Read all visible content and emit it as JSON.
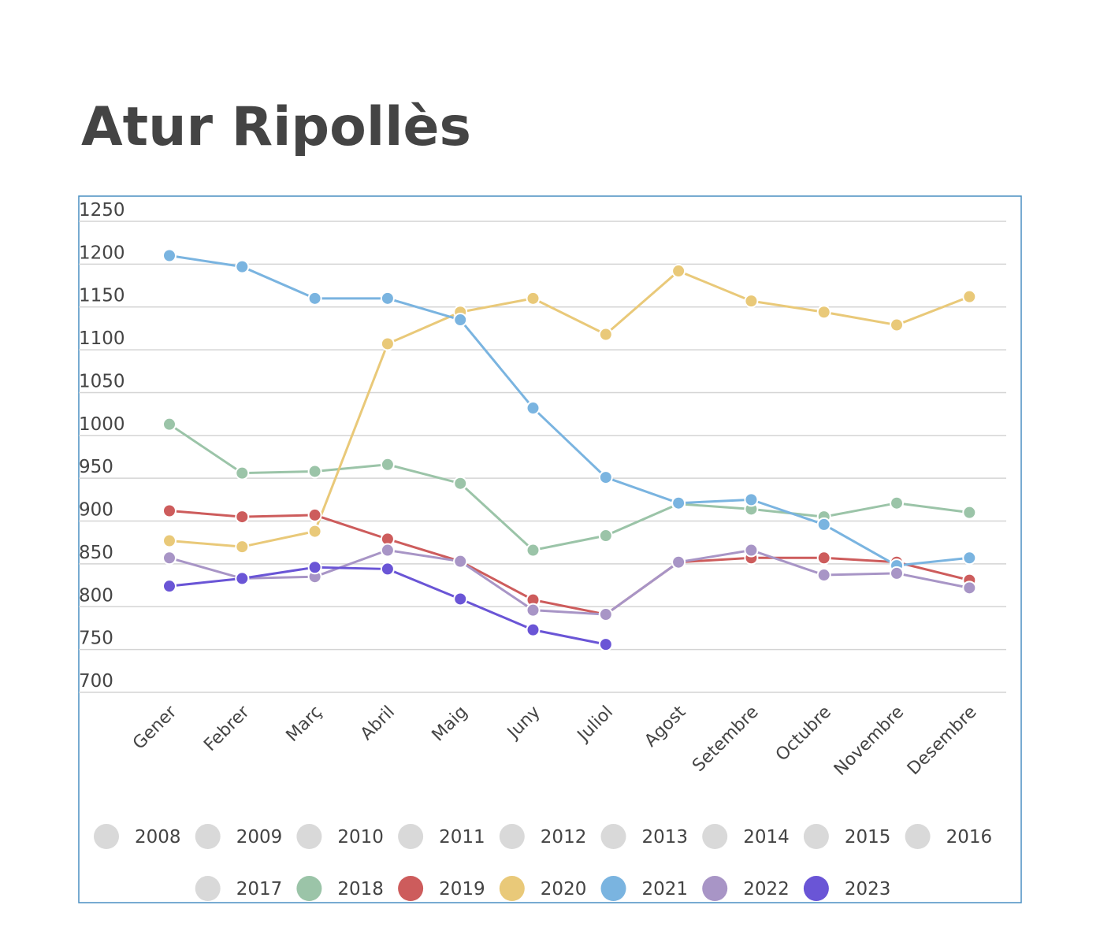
{
  "chart_data": {
    "type": "line",
    "title": "Atur Ripollès",
    "categories": [
      "Gener",
      "Febrer",
      "Març",
      "Abril",
      "Maig",
      "Juny",
      "Juliol",
      "Agost",
      "Setembre",
      "Octubre",
      "Novembre",
      "Desembre"
    ],
    "ylim": [
      700,
      1250
    ],
    "yticks": [
      700,
      750,
      800,
      850,
      900,
      950,
      1000,
      1050,
      1100,
      1150,
      1200,
      1250
    ],
    "grid": true,
    "legend": "bottom",
    "series": [
      {
        "name": "2008",
        "color": "#d9d9d9",
        "hidden": true
      },
      {
        "name": "2009",
        "color": "#d9d9d9",
        "hidden": true
      },
      {
        "name": "2010",
        "color": "#d9d9d9",
        "hidden": true
      },
      {
        "name": "2011",
        "color": "#d9d9d9",
        "hidden": true
      },
      {
        "name": "2012",
        "color": "#d9d9d9",
        "hidden": true
      },
      {
        "name": "2013",
        "color": "#d9d9d9",
        "hidden": true
      },
      {
        "name": "2014",
        "color": "#d9d9d9",
        "hidden": true
      },
      {
        "name": "2015",
        "color": "#d9d9d9",
        "hidden": true
      },
      {
        "name": "2016",
        "color": "#d9d9d9",
        "hidden": true
      },
      {
        "name": "2017",
        "color": "#d9d9d9",
        "hidden": true
      },
      {
        "name": "2018",
        "color": "#9bc4a8",
        "values": [
          1013,
          956,
          958,
          966,
          944,
          866,
          883,
          920,
          914,
          905,
          921,
          910
        ]
      },
      {
        "name": "2019",
        "color": "#cd5c5c",
        "values": [
          912,
          905,
          907,
          879,
          853,
          808,
          791,
          852,
          857,
          857,
          852,
          831
        ]
      },
      {
        "name": "2020",
        "color": "#e9c979",
        "values": [
          877,
          870,
          888,
          1107,
          1144,
          1160,
          1118,
          1192,
          1157,
          1144,
          1129,
          1162
        ]
      },
      {
        "name": "2021",
        "color": "#7ab4e0",
        "values": [
          1210,
          1197,
          1160,
          1160,
          1135,
          1032,
          951,
          921,
          925,
          896,
          848,
          857
        ]
      },
      {
        "name": "2022",
        "color": "#a895c6",
        "values": [
          857,
          833,
          835,
          866,
          853,
          796,
          791,
          852,
          866,
          837,
          839,
          822
        ]
      },
      {
        "name": "2023",
        "color": "#6a55d6",
        "values": [
          824,
          833,
          846,
          844,
          809,
          773,
          756,
          null,
          null,
          null,
          null,
          null
        ]
      }
    ]
  }
}
